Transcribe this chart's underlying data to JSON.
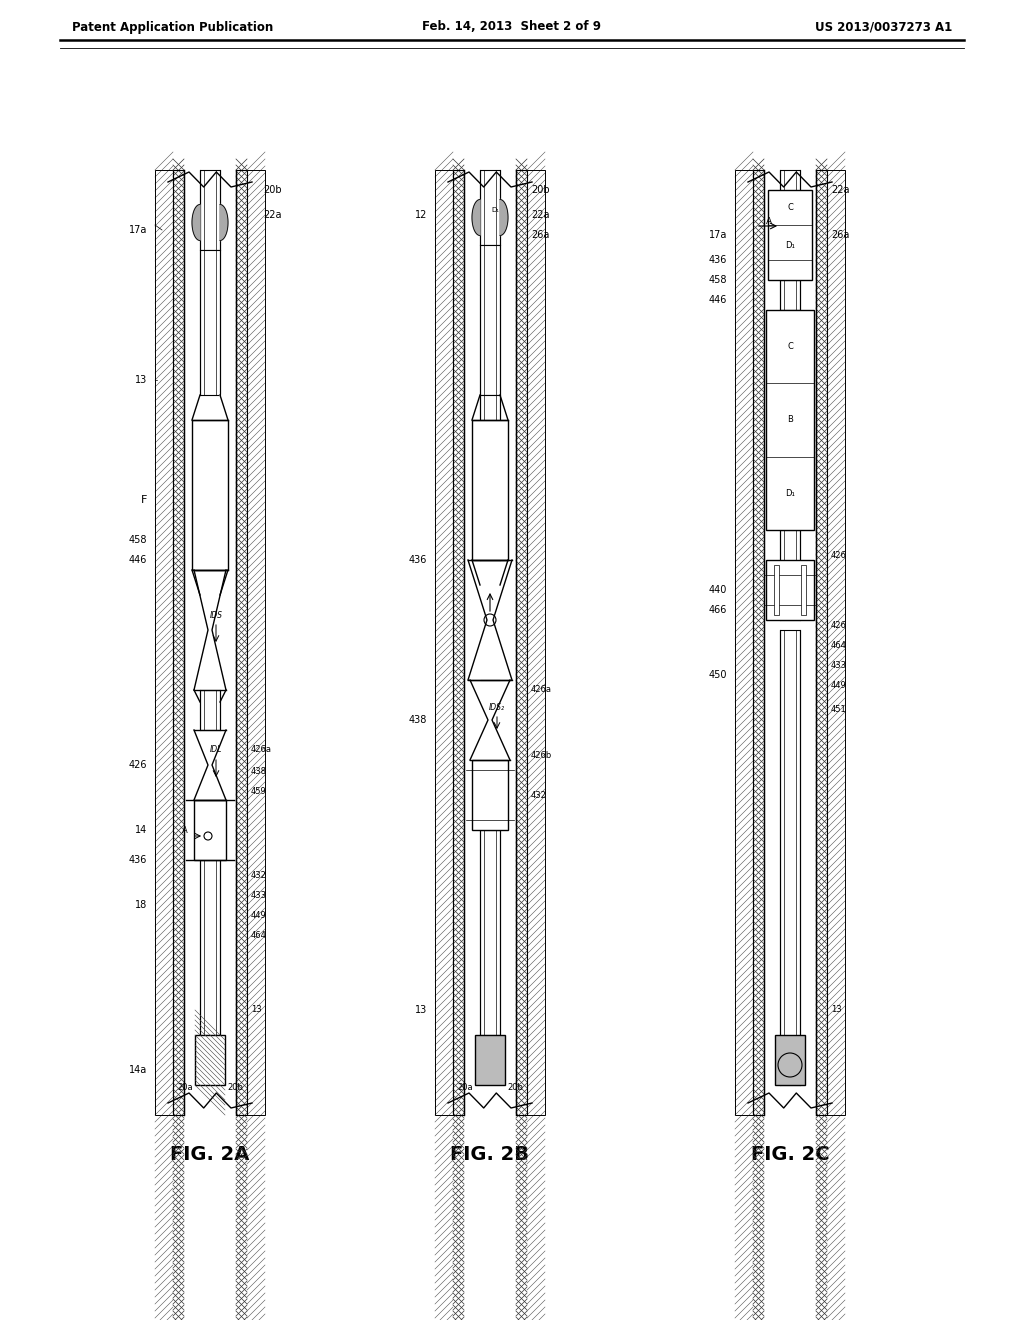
{
  "title_left": "Patent Application Publication",
  "title_center": "Feb. 14, 2013  Sheet 2 of 9",
  "title_right": "US 2013/0037273 A1",
  "fig_labels": [
    "FIG. 2A",
    "FIG. 2B",
    "FIG. 2C"
  ],
  "background_color": "#ffffff",
  "line_color": "#000000",
  "fig2a_labels_left": [
    "17a",
    "13",
    "F",
    "458",
    "446",
    "426",
    "14",
    "436",
    "18",
    "14a"
  ],
  "fig2a_labels_right": [
    "20b",
    "22a",
    "426a",
    "438",
    "459",
    "432",
    "433",
    "449",
    "464",
    "13",
    "20a"
  ],
  "fig2b_labels_left": [
    "12",
    "436",
    "438"
  ],
  "fig2b_labels_right": [
    "20b",
    "22a",
    "26a",
    "426a",
    "426b",
    "432",
    "13",
    "20a"
  ],
  "fig2c_labels_left": [
    "17a",
    "436",
    "458",
    "446",
    "440",
    "466",
    "450"
  ],
  "fig2c_labels_right": [
    "22a",
    "26a",
    "426",
    "426",
    "464",
    "433",
    "449",
    "451",
    "13"
  ]
}
